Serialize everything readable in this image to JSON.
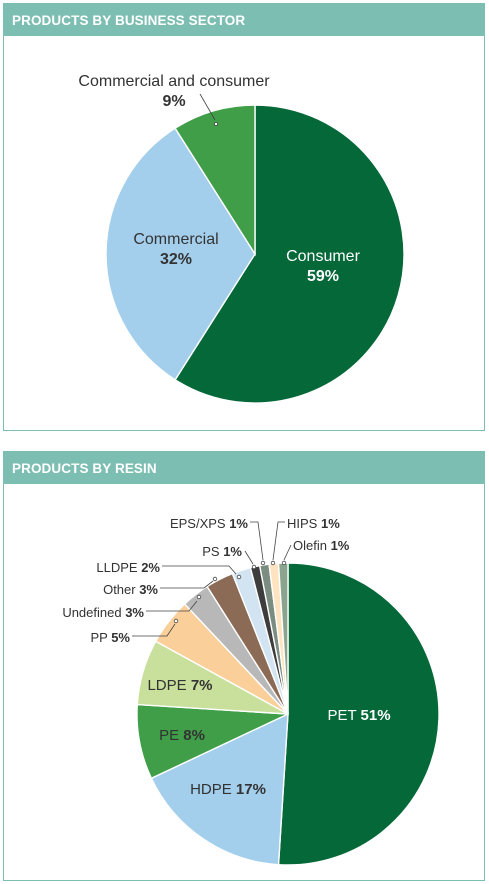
{
  "chart_data": [
    {
      "type": "pie",
      "title": "PRODUCTS BY BUSINESS SECTOR",
      "slices": [
        {
          "label": "Consumer",
          "value": 59,
          "value_label": "59%",
          "color": "#046839"
        },
        {
          "label": "Commercial",
          "value": 32,
          "value_label": "32%",
          "color": "#a3cfec"
        },
        {
          "label": "Commercial and consumer",
          "value": 9,
          "value_label": "9%",
          "color": "#3f9e47"
        }
      ]
    },
    {
      "type": "pie",
      "title": "PRODUCTS BY RESIN",
      "slices": [
        {
          "label": "PET",
          "value": 51,
          "value_label": "51%",
          "color": "#046839"
        },
        {
          "label": "HDPE",
          "value": 17,
          "value_label": "17%",
          "color": "#a3cfec"
        },
        {
          "label": "PE",
          "value": 8,
          "value_label": "8%",
          "color": "#3f9e47"
        },
        {
          "label": "LDPE",
          "value": 7,
          "value_label": "7%",
          "color": "#c8e09b"
        },
        {
          "label": "PP",
          "value": 5,
          "value_label": "5%",
          "color": "#fbcf99"
        },
        {
          "label": "Undefined",
          "value": 3,
          "value_label": "3%",
          "color": "#b8b8b8"
        },
        {
          "label": "Other",
          "value": 3,
          "value_label": "3%",
          "color": "#8b6b55"
        },
        {
          "label": "LLDPE",
          "value": 2,
          "value_label": "2%",
          "color": "#d2e4f2"
        },
        {
          "label": "PS",
          "value": 1,
          "value_label": "1%",
          "color": "#3d3d3d"
        },
        {
          "label": "EPS/XPS",
          "value": 1,
          "value_label": "1%",
          "color": "#7a8d80"
        },
        {
          "label": "HIPS",
          "value": 1,
          "value_label": "1%",
          "color": "#fde3c0"
        },
        {
          "label": "Olefin",
          "value": 1,
          "value_label": "1%",
          "color": "#8aa48f"
        }
      ]
    }
  ]
}
